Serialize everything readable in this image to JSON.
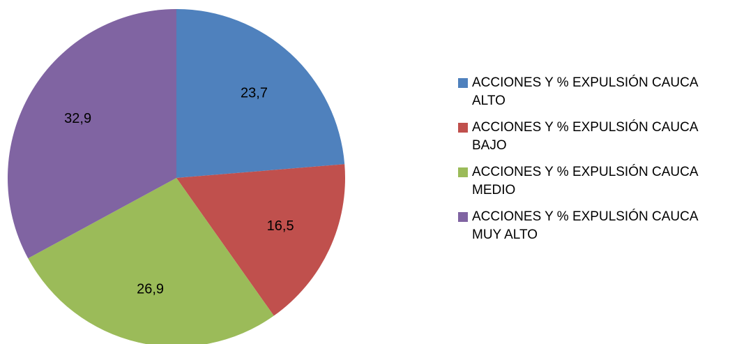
{
  "chart_data": {
    "type": "pie",
    "categories": [
      "ACCIONES Y % EXPULSIÓN CAUCA ALTO",
      "ACCIONES Y % EXPULSIÓN CAUCA BAJO",
      "ACCIONES Y % EXPULSIÓN CAUCA MEDIO",
      "ACCIONES Y % EXPULSIÓN CAUCA MUY ALTO"
    ],
    "values": [
      23.7,
      16.5,
      26.9,
      32.9
    ],
    "value_labels": [
      "23,7",
      "16,5",
      "26,9",
      "32,9"
    ],
    "colors": [
      "#4f81bd",
      "#c0504d",
      "#9bbb59",
      "#8064a2"
    ],
    "legend": "right"
  }
}
